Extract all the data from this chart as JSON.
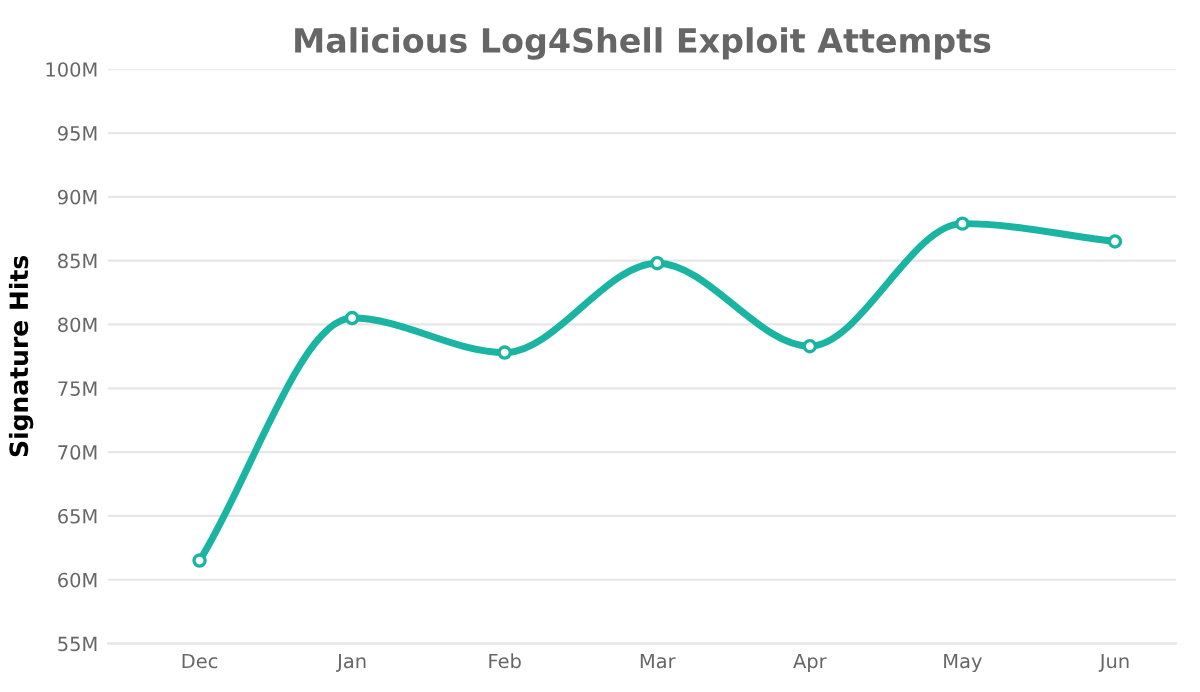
{
  "chart_data": {
    "type": "line",
    "title": "Malicious Log4Shell Exploit Attempts",
    "ylabel": "Signature Hits",
    "categories": [
      "Dec",
      "Jan",
      "Feb",
      "Mar",
      "Apr",
      "May",
      "Jun"
    ],
    "series": [
      {
        "color": "#1ab4a2",
        "values": [
          61.5,
          80.5,
          77.8,
          84.8,
          78.3,
          87.9,
          86.5
        ]
      }
    ],
    "ylim": [
      55,
      100
    ],
    "yticks": [
      {
        "value": 55,
        "label": "55M"
      },
      {
        "value": 60,
        "label": "60M"
      },
      {
        "value": 65,
        "label": "65M"
      },
      {
        "value": 70,
        "label": "70M"
      },
      {
        "value": 75,
        "label": "75M"
      },
      {
        "value": 80,
        "label": "80M"
      },
      {
        "value": 85,
        "label": "85M"
      },
      {
        "value": 90,
        "label": "90M"
      },
      {
        "value": 95,
        "label": "95M"
      },
      {
        "value": 100,
        "label": "100M"
      }
    ],
    "grid": "y",
    "marker": "circle",
    "line_style": "solid",
    "legend": false
  }
}
